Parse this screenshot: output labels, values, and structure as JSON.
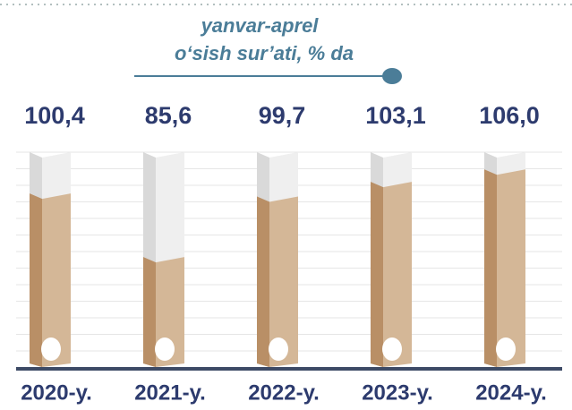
{
  "chart_data": {
    "type": "bar",
    "title": "yanvar-aprel",
    "subtitle": "o‘sish sur’ati, % da",
    "categories": [
      "2020-y.",
      "2021-y.",
      "2022-y.",
      "2023-y.",
      "2024-y."
    ],
    "values": [
      100.4,
      85.6,
      99.7,
      103.1,
      106.0
    ],
    "value_labels": [
      "100,4",
      "85,6",
      "99,7",
      "103,1",
      "106,0"
    ],
    "color": "#d4b797",
    "ylim": [
      60,
      110
    ]
  }
}
